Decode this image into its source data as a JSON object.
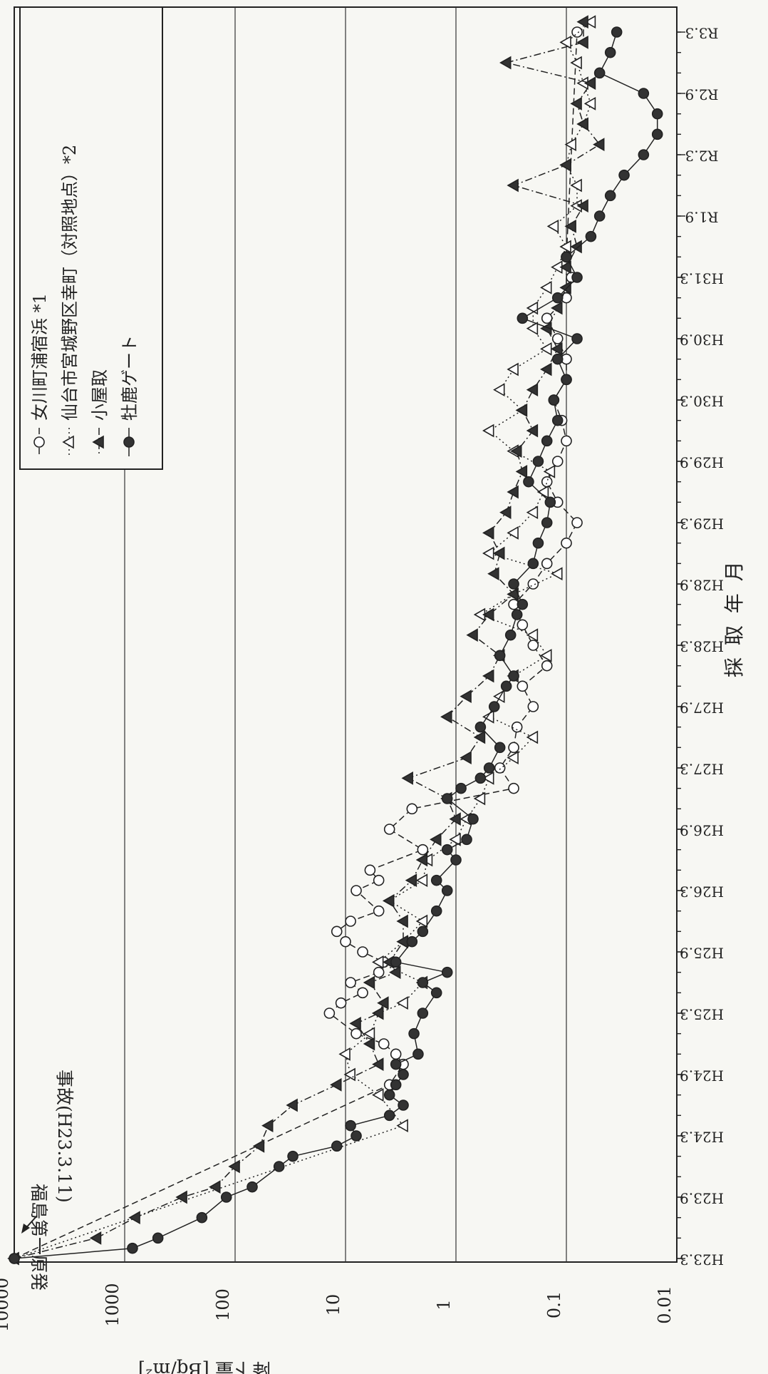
{
  "chart_data": {
    "type": "line",
    "ylabel": "降下量 [Bq/m²]",
    "xlabel": "採 取 年 月",
    "y_scale": "log",
    "ylim": [
      0.01,
      10000
    ],
    "y_ticks": [
      "10000",
      "1000",
      "100",
      "10",
      "1",
      "0.1",
      "0.01"
    ],
    "x_ticks": [
      "H23.3",
      "H23.9",
      "H24.3",
      "H24.9",
      "H25.3",
      "H25.9",
      "H26.3",
      "H26.9",
      "H27.3",
      "H27.9",
      "H28.3",
      "H28.9",
      "H29.3",
      "H29.9",
      "H30.3",
      "H30.9",
      "H31.3",
      "R1.9",
      "R2.3",
      "R2.9",
      "R3.3"
    ],
    "x_unit": "months since H23.3 (March 2011)",
    "grid": "horizontal",
    "legend_position": "top-left",
    "annotation": {
      "line1": "福島第一原発",
      "line2": "事故(H23.3.11)"
    },
    "series": [
      {
        "name": "女川町浦宿浜 *1",
        "marker": "open-circle",
        "line": "dashed",
        "points": [
          [
            0,
            10000
          ],
          [
            17,
            4
          ],
          [
            19,
            3
          ],
          [
            20,
            3.5
          ],
          [
            21,
            4.5
          ],
          [
            22,
            8
          ],
          [
            24,
            14
          ],
          [
            25,
            11
          ],
          [
            26,
            7
          ],
          [
            27,
            9
          ],
          [
            28,
            5
          ],
          [
            29,
            4.5
          ],
          [
            30,
            7
          ],
          [
            31,
            10
          ],
          [
            32,
            12
          ],
          [
            33,
            9
          ],
          [
            34,
            5
          ],
          [
            36,
            8
          ],
          [
            37,
            5
          ],
          [
            38,
            6
          ],
          [
            40,
            2
          ],
          [
            42,
            4
          ],
          [
            44,
            2.5
          ],
          [
            46,
            0.3
          ],
          [
            48,
            0.4
          ],
          [
            50,
            0.3
          ],
          [
            52,
            0.28
          ],
          [
            54,
            0.2
          ],
          [
            56,
            0.25
          ],
          [
            58,
            0.15
          ],
          [
            60,
            0.2
          ],
          [
            62,
            0.25
          ],
          [
            64,
            0.3
          ],
          [
            66,
            0.2
          ],
          [
            68,
            0.15
          ],
          [
            70,
            0.1
          ],
          [
            72,
            0.08
          ],
          [
            74,
            0.12
          ],
          [
            76,
            0.15
          ],
          [
            78,
            0.12
          ],
          [
            80,
            0.1
          ],
          [
            82,
            0.11
          ],
          [
            84,
            0.13
          ],
          [
            86,
            0.1
          ],
          [
            88,
            0.1
          ],
          [
            90,
            0.12
          ],
          [
            92,
            0.15
          ],
          [
            94,
            0.1
          ],
          [
            96,
            0.09
          ],
          [
            98,
            0.1
          ],
          [
            120,
            0.08
          ]
        ]
      },
      {
        "name": "仙台市宮城野区幸町（対照地点）*2",
        "marker": "open-triangle",
        "line": "dotted",
        "points": [
          [
            0,
            10000
          ],
          [
            13,
            3
          ],
          [
            16,
            5
          ],
          [
            18,
            9
          ],
          [
            20,
            10
          ],
          [
            22,
            6
          ],
          [
            24,
            5
          ],
          [
            25,
            3
          ],
          [
            27,
            2
          ],
          [
            29,
            5
          ],
          [
            31,
            3
          ],
          [
            33,
            2
          ],
          [
            35,
            4
          ],
          [
            37,
            2
          ],
          [
            39,
            1.8
          ],
          [
            41,
            1
          ],
          [
            43,
            0.8
          ],
          [
            45,
            0.6
          ],
          [
            47,
            0.5
          ],
          [
            49,
            0.3
          ],
          [
            51,
            0.2
          ],
          [
            53,
            0.5
          ],
          [
            55,
            0.4
          ],
          [
            57,
            0.3
          ],
          [
            59,
            0.15
          ],
          [
            61,
            0.2
          ],
          [
            63,
            0.6
          ],
          [
            65,
            0.3
          ],
          [
            67,
            0.12
          ],
          [
            69,
            0.5
          ],
          [
            71,
            0.3
          ],
          [
            73,
            0.2
          ],
          [
            75,
            0.16
          ],
          [
            77,
            0.14
          ],
          [
            79,
            0.3
          ],
          [
            81,
            0.5
          ],
          [
            83,
            0.25
          ],
          [
            85,
            0.4
          ],
          [
            87,
            0.3
          ],
          [
            89,
            0.15
          ],
          [
            91,
            0.2
          ],
          [
            93,
            0.2
          ],
          [
            95,
            0.15
          ],
          [
            97,
            0.12
          ],
          [
            99,
            0.1
          ],
          [
            101,
            0.13
          ],
          [
            103,
            0.08
          ],
          [
            105,
            0.08
          ],
          [
            107,
            0.1
          ],
          [
            109,
            0.09
          ],
          [
            111,
            0.07
          ],
          [
            113,
            0.06
          ],
          [
            115,
            0.07
          ],
          [
            117,
            0.08
          ],
          [
            119,
            0.1
          ],
          [
            121,
            0.06
          ]
        ]
      },
      {
        "name": "小屋取",
        "marker": "filled-triangle",
        "line": "dash-dot",
        "points": [
          [
            0,
            10000
          ],
          [
            2,
            1800
          ],
          [
            4,
            800
          ],
          [
            6,
            300
          ],
          [
            7,
            150
          ],
          [
            9,
            100
          ],
          [
            11,
            60
          ],
          [
            13,
            50
          ],
          [
            15,
            30
          ],
          [
            17,
            12
          ],
          [
            19,
            5
          ],
          [
            21,
            6
          ],
          [
            23,
            8
          ],
          [
            24,
            5
          ],
          [
            25,
            4.5
          ],
          [
            27,
            6
          ],
          [
            28,
            3.5
          ],
          [
            29,
            4
          ],
          [
            31,
            3
          ],
          [
            33,
            3
          ],
          [
            35,
            4
          ],
          [
            37,
            2.5
          ],
          [
            39,
            2
          ],
          [
            41,
            1.5
          ],
          [
            43,
            1
          ],
          [
            45,
            1.2
          ],
          [
            47,
            2.7
          ],
          [
            49,
            0.8
          ],
          [
            51,
            0.6
          ],
          [
            53,
            1.2
          ],
          [
            55,
            0.8
          ],
          [
            57,
            0.5
          ],
          [
            59,
            0.4
          ],
          [
            61,
            0.7
          ],
          [
            63,
            0.5
          ],
          [
            65,
            0.3
          ],
          [
            67,
            0.45
          ],
          [
            69,
            0.4
          ],
          [
            71,
            0.5
          ],
          [
            73,
            0.35
          ],
          [
            75,
            0.3
          ],
          [
            77,
            0.25
          ],
          [
            79,
            0.28
          ],
          [
            81,
            0.2
          ],
          [
            83,
            0.25
          ],
          [
            85,
            0.2
          ],
          [
            87,
            0.15
          ],
          [
            89,
            0.12
          ],
          [
            91,
            0.15
          ],
          [
            93,
            0.12
          ],
          [
            95,
            0.1
          ],
          [
            97,
            0.1
          ],
          [
            99,
            0.08
          ],
          [
            101,
            0.09
          ],
          [
            103,
            0.07
          ],
          [
            105,
            0.3
          ],
          [
            107,
            0.1
          ],
          [
            109,
            0.05
          ],
          [
            111,
            0.07
          ],
          [
            113,
            0.08
          ],
          [
            115,
            0.06
          ],
          [
            117,
            0.35
          ],
          [
            119,
            0.07
          ],
          [
            121,
            0.07
          ]
        ]
      },
      {
        "name": "牡鹿ゲート",
        "marker": "filled-circle",
        "line": "solid",
        "points": [
          [
            0,
            10000
          ],
          [
            1,
            850
          ],
          [
            2,
            500
          ],
          [
            4,
            200
          ],
          [
            6,
            120
          ],
          [
            7,
            70
          ],
          [
            9,
            40
          ],
          [
            10,
            30
          ],
          [
            11,
            12
          ],
          [
            12,
            8
          ],
          [
            13,
            9
          ],
          [
            14,
            4
          ],
          [
            15,
            3
          ],
          [
            16,
            4
          ],
          [
            17,
            3.5
          ],
          [
            18,
            3
          ],
          [
            19,
            3.5
          ],
          [
            20,
            2.2
          ],
          [
            22,
            2.4
          ],
          [
            24,
            2
          ],
          [
            26,
            1.5
          ],
          [
            27,
            2
          ],
          [
            28,
            1.2
          ],
          [
            29,
            3.5
          ],
          [
            31,
            2.5
          ],
          [
            32,
            2
          ],
          [
            34,
            1.5
          ],
          [
            36,
            1.2
          ],
          [
            37,
            1.5
          ],
          [
            39,
            1
          ],
          [
            40,
            1.2
          ],
          [
            41,
            0.8
          ],
          [
            43,
            0.7
          ],
          [
            45,
            1.2
          ],
          [
            46,
            0.9
          ],
          [
            47,
            0.6
          ],
          [
            48,
            0.5
          ],
          [
            50,
            0.4
          ],
          [
            52,
            0.6
          ],
          [
            54,
            0.45
          ],
          [
            56,
            0.35
          ],
          [
            57,
            0.3
          ],
          [
            59,
            0.4
          ],
          [
            61,
            0.32
          ],
          [
            63,
            0.28
          ],
          [
            64,
            0.25
          ],
          [
            66,
            0.3
          ],
          [
            68,
            0.2
          ],
          [
            70,
            0.18
          ],
          [
            72,
            0.15
          ],
          [
            74,
            0.14
          ],
          [
            76,
            0.22
          ],
          [
            78,
            0.18
          ],
          [
            80,
            0.15
          ],
          [
            82,
            0.12
          ],
          [
            84,
            0.13
          ],
          [
            86,
            0.1
          ],
          [
            88,
            0.12
          ],
          [
            90,
            0.08
          ],
          [
            92,
            0.25
          ],
          [
            94,
            0.12
          ],
          [
            96,
            0.08
          ],
          [
            98,
            0.1
          ],
          [
            100,
            0.06
          ],
          [
            102,
            0.05
          ],
          [
            104,
            0.04
          ],
          [
            106,
            0.03
          ],
          [
            108,
            0.02
          ],
          [
            110,
            0.015
          ],
          [
            112,
            0.015
          ],
          [
            114,
            0.02
          ],
          [
            116,
            0.05
          ],
          [
            118,
            0.04
          ],
          [
            120,
            0.035
          ]
        ]
      }
    ]
  }
}
